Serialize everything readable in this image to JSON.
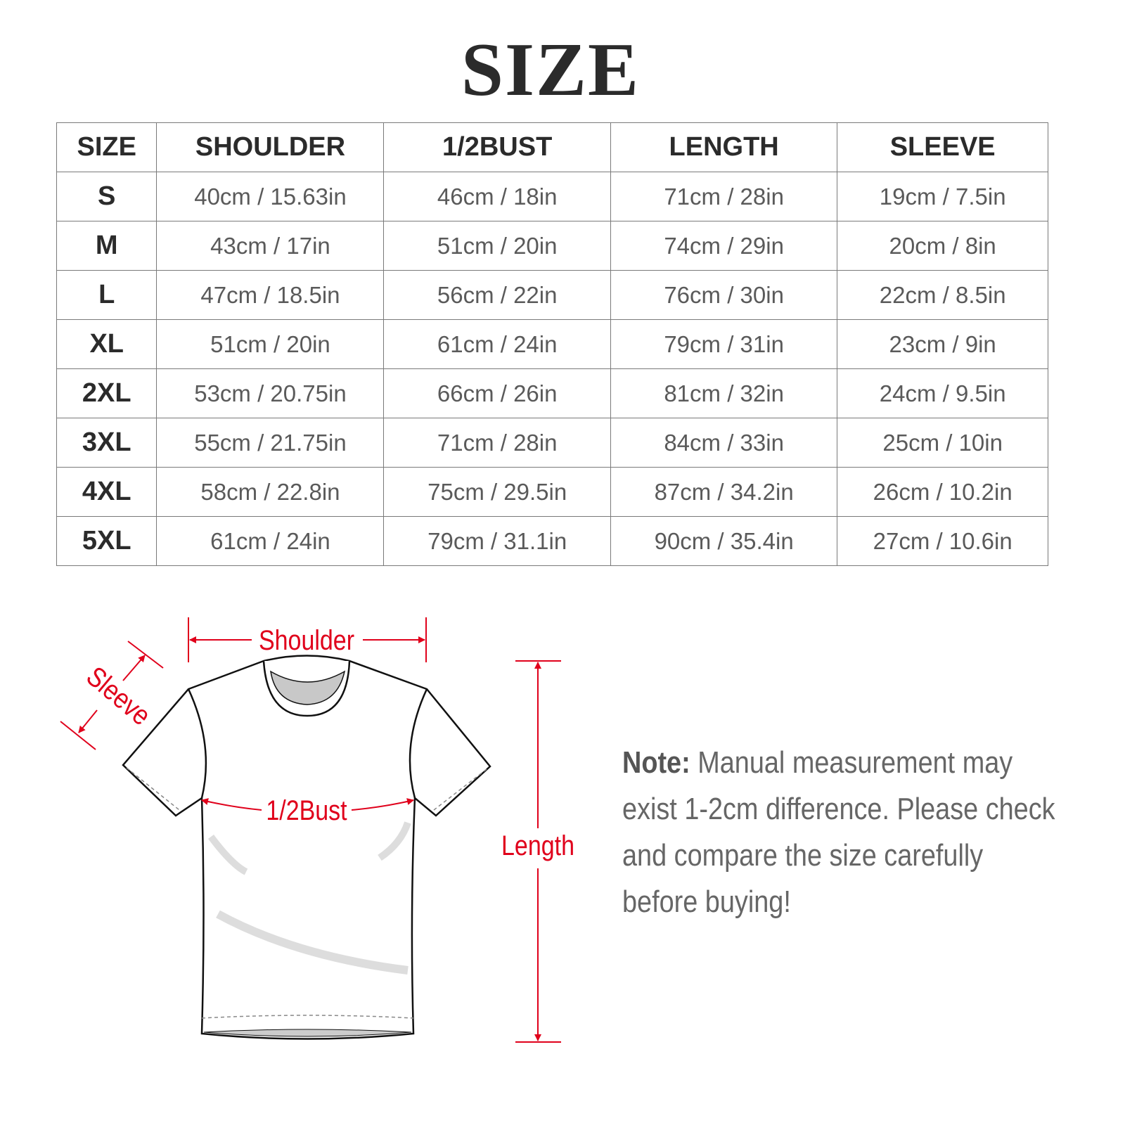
{
  "title": "SIZE",
  "table": {
    "headers": [
      "SIZE",
      "SHOULDER",
      "1/2BUST",
      "LENGTH",
      "SLEEVE"
    ],
    "rows": [
      [
        "S",
        "40cm / 15.63in",
        "46cm / 18in",
        "71cm / 28in",
        "19cm / 7.5in"
      ],
      [
        "M",
        "43cm / 17in",
        "51cm / 20in",
        "74cm / 29in",
        "20cm / 8in"
      ],
      [
        "L",
        "47cm / 18.5in",
        "56cm / 22in",
        "76cm / 30in",
        "22cm / 8.5in"
      ],
      [
        "XL",
        "51cm / 20in",
        "61cm / 24in",
        "79cm / 31in",
        "23cm / 9in"
      ],
      [
        "2XL",
        "53cm / 20.75in",
        "66cm / 26in",
        "81cm / 32in",
        "24cm / 9.5in"
      ],
      [
        "3XL",
        "55cm / 21.75in",
        "71cm / 28in",
        "84cm / 33in",
        "25cm / 10in"
      ],
      [
        "4XL",
        "58cm / 22.8in",
        "75cm / 29.5in",
        "87cm / 34.2in",
        "26cm / 10.2in"
      ],
      [
        "5XL",
        "61cm / 24in",
        "79cm / 31.1in",
        "90cm / 35.4in",
        "27cm / 10.6in"
      ]
    ]
  },
  "diagram": {
    "labels": {
      "shoulder": "Shoulder",
      "sleeve": "Sleeve",
      "bust": "1/2Bust",
      "length": "Length"
    },
    "label_color": "#e0001b"
  },
  "note": {
    "label": "Note:",
    "text": " Manual measurement may exist 1-2cm difference. Please check and compare the size carefully before buying!"
  }
}
